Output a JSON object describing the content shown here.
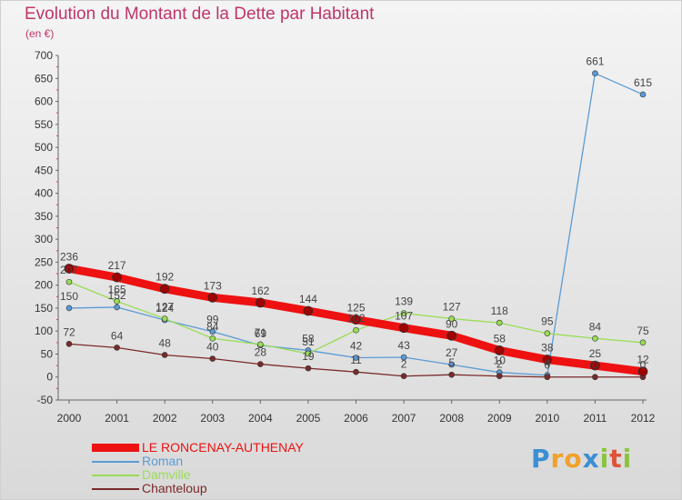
{
  "chart_data": {
    "type": "line",
    "title": "Evolution du Montant de la Dette par Habitant",
    "subtitle": "(en €)",
    "x": [
      "2000",
      "2001",
      "2002",
      "2003",
      "2004",
      "2005",
      "2006",
      "2007",
      "2008",
      "2009",
      "2010",
      "2011",
      "2012"
    ],
    "yticks": [
      "700",
      "650",
      "600",
      "550",
      "500",
      "450",
      "400",
      "350",
      "300",
      "250",
      "200",
      "150",
      "100",
      "50",
      "0",
      "-50"
    ],
    "ylim": [
      -50,
      700
    ],
    "grid": false,
    "legend_position": "bottom-left",
    "series": [
      {
        "name": "LE RONCENAY-AUTHENAY",
        "color": "#ee1111",
        "values": [
          236,
          217,
          192,
          173,
          162,
          144,
          125,
          107,
          90,
          58,
          38,
          25,
          12
        ],
        "labels": [
          "236",
          "217",
          "192",
          "173",
          "162",
          "144",
          "125",
          "107",
          "90",
          "58",
          "38",
          "25",
          "12"
        ]
      },
      {
        "name": "Roman",
        "color": "#5b9bd5",
        "values": [
          150,
          152,
          124,
          99,
          69,
          58,
          42,
          43,
          27,
          10,
          4,
          661,
          615
        ],
        "labels": [
          "150",
          "152",
          "124",
          "99",
          "69",
          "58",
          "42",
          "43",
          "27",
          "10",
          "4",
          "661",
          "615"
        ]
      },
      {
        "name": "Damville",
        "color": "#99dd55",
        "values": [
          207,
          165,
          127,
          84,
          71,
          51,
          102,
          139,
          127,
          118,
          95,
          84,
          75
        ],
        "labels": [
          "207",
          "165",
          "127",
          "84",
          "71",
          "51",
          "102",
          "139",
          "127",
          "118",
          "95",
          "84",
          "75"
        ]
      },
      {
        "name": "Chanteloup",
        "color": "#7a2a2a",
        "values": [
          72,
          64,
          48,
          40,
          28,
          19,
          11,
          2,
          5,
          2,
          0,
          0,
          0
        ],
        "labels": [
          "72",
          "64",
          "48",
          "40",
          "28",
          "19",
          "11",
          "2",
          "5",
          "2",
          "0",
          "0",
          "0"
        ]
      }
    ]
  },
  "logo": {
    "letters": [
      "P",
      "r",
      "o",
      "x",
      "i",
      "t",
      "i"
    ],
    "colors": [
      "#3b8fd4",
      "#f0a12a",
      "#f0a12a",
      "#3b8fd4",
      "#8ac43f",
      "#e0523a",
      "#8ac43f"
    ]
  }
}
